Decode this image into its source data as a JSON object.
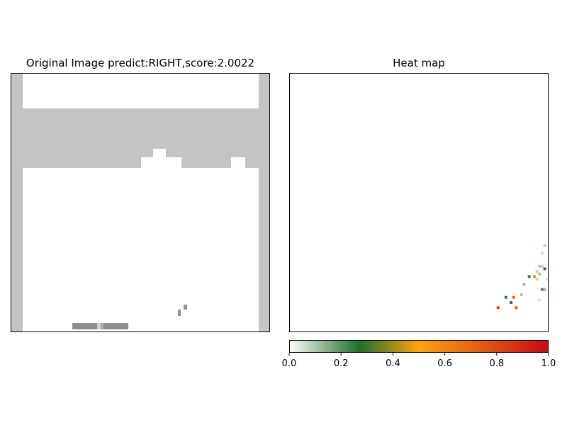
{
  "chart_data": [
    {
      "type": "image",
      "title": "Original Image predict:RIGHT,score:2.0022",
      "grid": false,
      "axes_ticks": false,
      "colors": {
        "background": "#ffffff",
        "wall": "#c4c4c4",
        "paddle": "#8e8e8e",
        "ball": "#8e8e8e"
      }
    },
    {
      "type": "heatmap",
      "title": "Heat map",
      "grid": false,
      "axes_ticks": false,
      "colorbar": {
        "orientation": "horizontal",
        "range": [
          0.0,
          1.0
        ],
        "ticks": [
          "0.0",
          "0.2",
          "0.4",
          "0.6",
          "0.8",
          "1.0"
        ],
        "colors": [
          "#ffffff",
          "#1e6e2a",
          "#ffa50a",
          "#c80a14"
        ]
      },
      "points": [
        {
          "row": 9,
          "col": 80,
          "value": 0.83
        },
        {
          "row": 9,
          "col": 87,
          "value": 0.75
        },
        {
          "row": 11,
          "col": 85,
          "value": 0.25
        },
        {
          "row": 13,
          "col": 83,
          "value": 0.24
        },
        {
          "row": 13,
          "col": 86,
          "value": 0.7
        },
        {
          "row": 16,
          "col": 97,
          "value": 0.22
        },
        {
          "row": 16,
          "col": 98,
          "value": 0.12
        },
        {
          "row": 14,
          "col": 89,
          "value": 0.1
        },
        {
          "row": 18,
          "col": 90,
          "value": 0.13
        },
        {
          "row": 21,
          "col": 92,
          "value": 0.25
        },
        {
          "row": 21,
          "col": 94,
          "value": 0.58
        },
        {
          "row": 20,
          "col": 95,
          "value": 0.08
        },
        {
          "row": 22,
          "col": 96,
          "value": 0.12
        },
        {
          "row": 23,
          "col": 95,
          "value": 0.08
        },
        {
          "row": 25,
          "col": 96,
          "value": 0.1
        },
        {
          "row": 25,
          "col": 97,
          "value": 0.08
        },
        {
          "row": 24,
          "col": 98,
          "value": 0.3
        },
        {
          "row": 20,
          "col": 99,
          "value": 0.05
        },
        {
          "row": 30,
          "col": 97,
          "value": 0.06
        },
        {
          "row": 33,
          "col": 98,
          "value": 0.08
        },
        {
          "row": 12,
          "col": 96,
          "value": 0.05
        }
      ]
    }
  ]
}
